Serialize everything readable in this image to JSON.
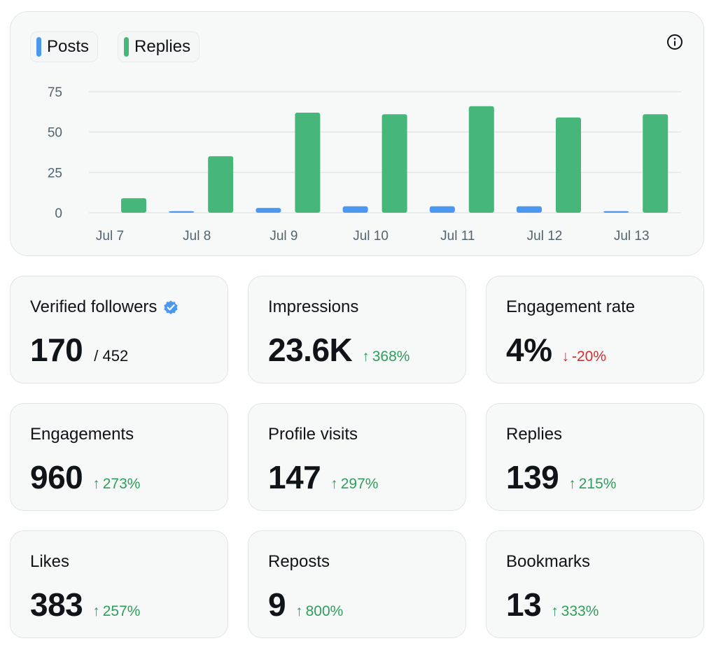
{
  "legend": [
    {
      "label": "Posts",
      "color": "#4c97f0"
    },
    {
      "label": "Replies",
      "color": "#47b67a"
    }
  ],
  "info_icon": "info-icon",
  "chart_data": {
    "type": "bar",
    "categories": [
      "Jul 7",
      "Jul 8",
      "Jul 9",
      "Jul 10",
      "Jul 11",
      "Jul 12",
      "Jul 13"
    ],
    "series": [
      {
        "name": "Posts",
        "color": "#4c97f0",
        "values": [
          0,
          1,
          3,
          4,
          4,
          4,
          1
        ]
      },
      {
        "name": "Replies",
        "color": "#47b67a",
        "values": [
          9,
          35,
          62,
          61,
          66,
          59,
          61
        ]
      }
    ],
    "yticks": [
      0,
      25,
      50,
      75
    ],
    "ylim": [
      0,
      75
    ],
    "grid": true,
    "legend_position": "top-left"
  },
  "stats": [
    {
      "label": "Verified followers",
      "value": "170",
      "sub": "/ 452",
      "verified": true
    },
    {
      "label": "Impressions",
      "value": "23.6K",
      "change": "368%",
      "direction": "up",
      "arrow": "↑"
    },
    {
      "label": "Engagement rate",
      "value": "4%",
      "change": "-20%",
      "direction": "down",
      "arrow": "↓"
    },
    {
      "label": "Engagements",
      "value": "960",
      "change": "273%",
      "direction": "up",
      "arrow": "↑"
    },
    {
      "label": "Profile visits",
      "value": "147",
      "change": "297%",
      "direction": "up",
      "arrow": "↑"
    },
    {
      "label": "Replies",
      "value": "139",
      "change": "215%",
      "direction": "up",
      "arrow": "↑"
    },
    {
      "label": "Likes",
      "value": "383",
      "change": "257%",
      "direction": "up",
      "arrow": "↑"
    },
    {
      "label": "Reposts",
      "value": "9",
      "change": "800%",
      "direction": "up",
      "arrow": "↑"
    },
    {
      "label": "Bookmarks",
      "value": "13",
      "change": "333%",
      "direction": "up",
      "arrow": "↑"
    }
  ]
}
